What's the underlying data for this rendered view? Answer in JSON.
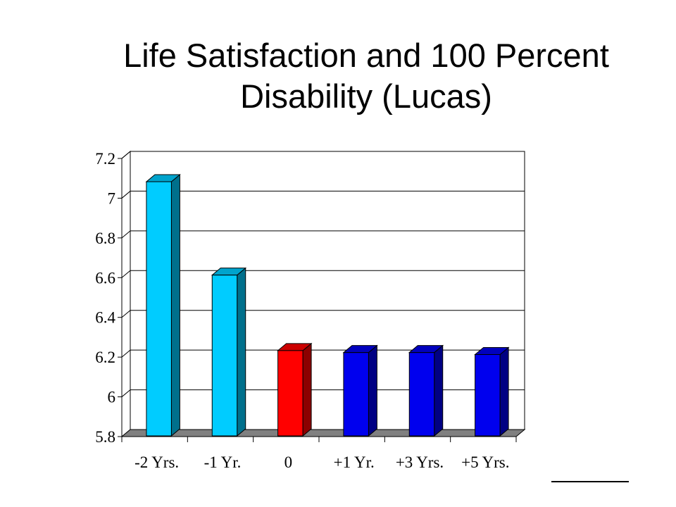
{
  "chart_data": {
    "type": "bar",
    "title": "Life Satisfaction and 100 Percent Disability (Lucas)",
    "categories": [
      "-2 Yrs.",
      "-1 Yr.",
      "0",
      "+1 Yr.",
      "+3 Yrs.",
      "+5 Yrs."
    ],
    "values": [
      7.09,
      6.62,
      6.24,
      6.23,
      6.23,
      6.22
    ],
    "colors": [
      "#00ccff",
      "#00ccff",
      "#ff0000",
      "#0000ee",
      "#0000ee",
      "#0000ee"
    ],
    "yticks": [
      "5.8",
      "6",
      "6.2",
      "6.4",
      "6.6",
      "6.8",
      "7",
      "7.2"
    ],
    "ylim": [
      5.8,
      7.2
    ],
    "xlabel": "",
    "ylabel": "",
    "grid": true,
    "legend": "none",
    "style": "3d"
  }
}
